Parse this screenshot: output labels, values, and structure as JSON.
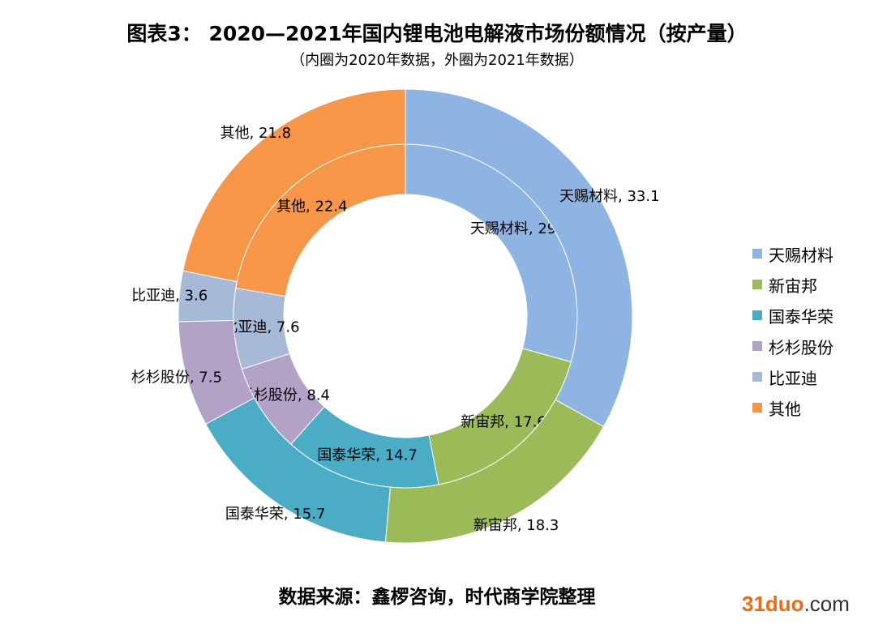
{
  "chart_data": {
    "type": "pie",
    "subtype": "double-donut",
    "title": "图表3： 2020—2021年国内锂电池电解液市场份额情况（按产量）",
    "subtitle": "（内圈为2020年数据，外圈为2021年数据）",
    "categories": [
      "天赐材料",
      "新宙邦",
      "国泰华荣",
      "杉杉股份",
      "比亚迪",
      "其他"
    ],
    "colors": [
      "#8EB4E3",
      "#9BBB59",
      "#4BACC6",
      "#B3A2C7",
      "#A6B9D6",
      "#F79646"
    ],
    "series": [
      {
        "name": "2020",
        "ring": "inner",
        "values": [
          29.3,
          17.6,
          14.7,
          8.4,
          7.6,
          22.4
        ]
      },
      {
        "name": "2021",
        "ring": "outer",
        "values": [
          33.1,
          18.3,
          15.7,
          7.5,
          3.6,
          21.8
        ]
      }
    ],
    "legend_position": "right"
  },
  "source": "数据来源：鑫椤咨询，时代商学院整理",
  "watermark": {
    "part1": "31duo",
    "part2": ".com"
  }
}
